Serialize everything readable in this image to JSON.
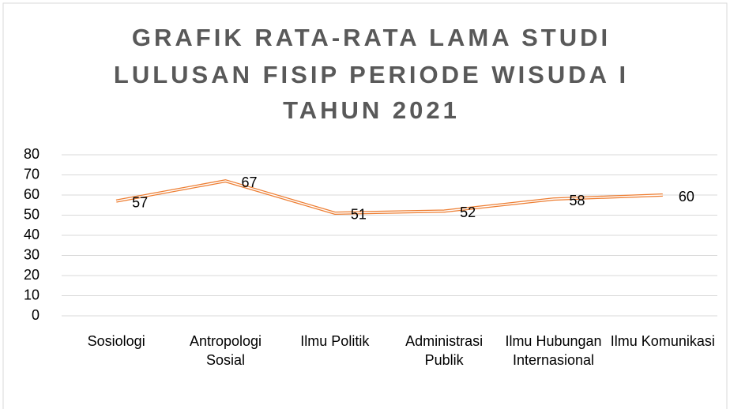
{
  "chart_data": {
    "type": "line",
    "title": [
      "GRAFIK RATA-RATA LAMA STUDI",
      "LULUSAN FISIP PERIODE WISUDA I",
      "TAHUN 2021"
    ],
    "categories": [
      "Sosiologi",
      "Antropologi Sosial",
      "Ilmu Politik",
      "Administrasi Publik",
      "Ilmu Hubungan Internasional",
      "Ilmu Komunikasi"
    ],
    "values": [
      57,
      67,
      51,
      52,
      58,
      60
    ],
    "color": "#ED7D31",
    "ylim": [
      0,
      80
    ],
    "yticks": [
      0,
      10,
      20,
      30,
      40,
      50,
      60,
      70,
      80
    ],
    "grid": true
  }
}
